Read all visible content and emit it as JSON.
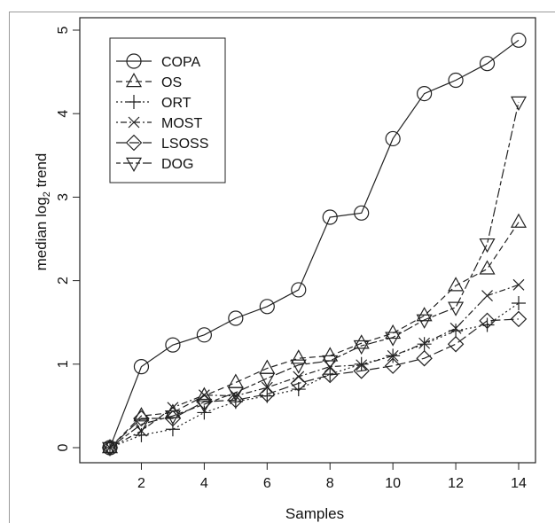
{
  "chart_data": {
    "type": "line",
    "xlabel": "Samples",
    "ylabel": "median log",
    "ylabel_sub": "2",
    "ylabel_suffix": " trend",
    "xlim": [
      1,
      14
    ],
    "ylim": [
      0,
      5
    ],
    "xticks": [
      2,
      4,
      6,
      8,
      10,
      12,
      14
    ],
    "yticks": [
      0,
      1,
      2,
      3,
      4,
      5
    ],
    "grid": false,
    "legend_position": "top-left",
    "x": [
      1,
      2,
      3,
      4,
      5,
      6,
      7,
      8,
      9,
      10,
      11,
      12,
      13,
      14
    ],
    "series": [
      {
        "name": "COPA",
        "marker": "circle",
        "dash": "solid",
        "values": [
          0,
          0.97,
          1.23,
          1.35,
          1.55,
          1.69,
          1.89,
          2.76,
          2.81,
          3.7,
          4.24,
          4.4,
          4.6,
          4.88
        ]
      },
      {
        "name": "OS",
        "marker": "triangle-up",
        "dash": "dashed",
        "values": [
          0,
          0.38,
          0.42,
          0.62,
          0.78,
          0.95,
          1.07,
          1.1,
          1.25,
          1.37,
          1.58,
          1.94,
          2.14,
          2.7
        ]
      },
      {
        "name": "ORT",
        "marker": "plus",
        "dash": "dotted",
        "values": [
          0,
          0.15,
          0.22,
          0.42,
          0.55,
          0.62,
          0.7,
          0.88,
          1.0,
          1.1,
          1.24,
          1.4,
          1.47,
          1.73
        ]
      },
      {
        "name": "MOST",
        "marker": "cross",
        "dash": "dotdash",
        "values": [
          0,
          0.2,
          0.48,
          0.63,
          0.62,
          0.72,
          0.85,
          0.97,
          0.99,
          1.1,
          1.25,
          1.43,
          1.82,
          1.95
        ]
      },
      {
        "name": "LSOSS",
        "marker": "diamond",
        "dash": "longdash",
        "values": [
          0,
          0.35,
          0.35,
          0.55,
          0.57,
          0.64,
          0.77,
          0.87,
          0.92,
          0.98,
          1.07,
          1.24,
          1.52,
          1.54
        ]
      },
      {
        "name": "DOG",
        "marker": "triangle-down",
        "dash": "twodash",
        "values": [
          0,
          0.28,
          0.38,
          0.52,
          0.66,
          0.83,
          0.99,
          1.04,
          1.22,
          1.32,
          1.53,
          1.68,
          2.44,
          4.14
        ]
      }
    ]
  }
}
